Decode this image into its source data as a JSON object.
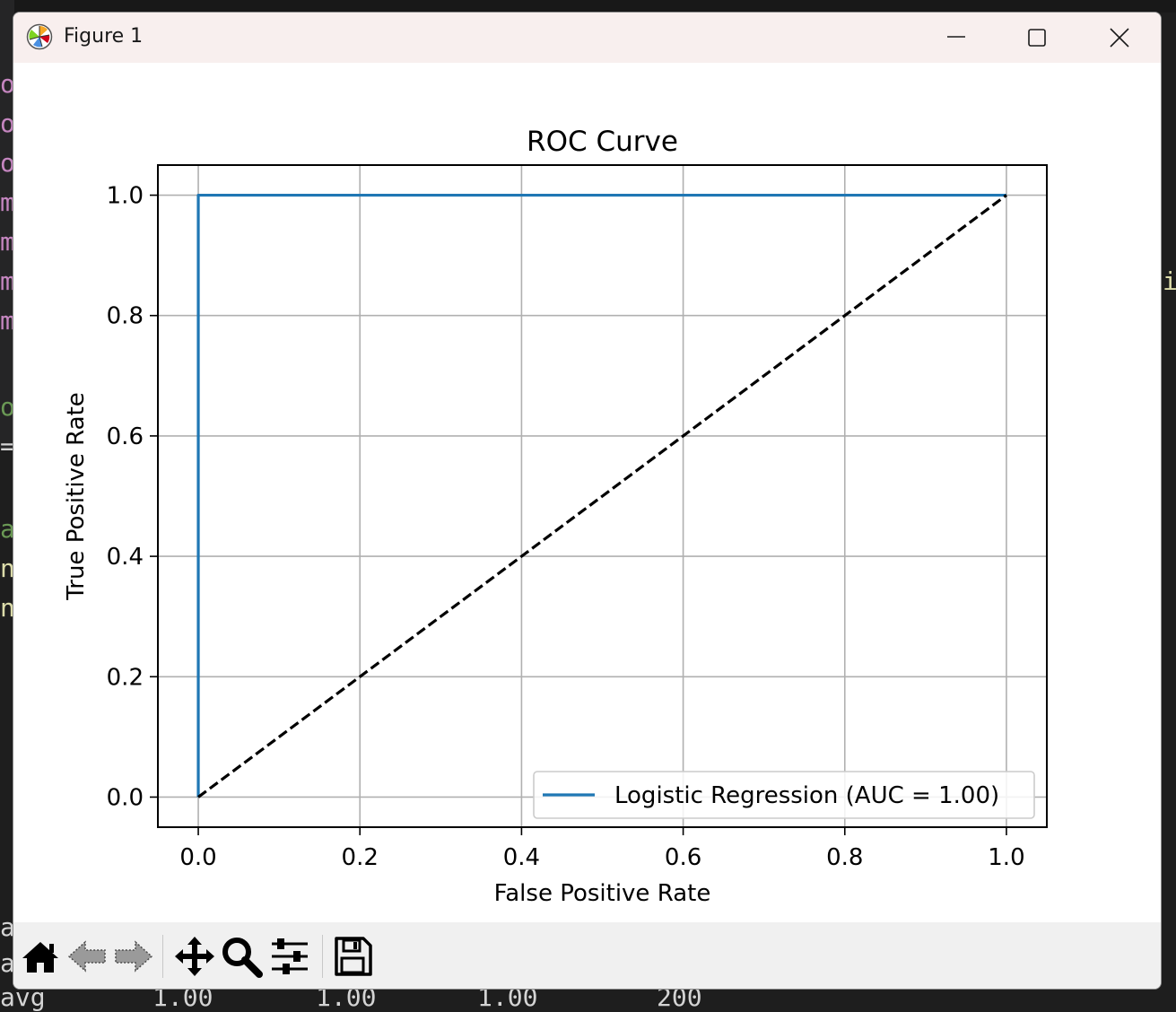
{
  "window": {
    "title": "Figure 1",
    "controls": {
      "minimize": "minimize",
      "maximize": "maximize",
      "close": "close"
    }
  },
  "chart_data": {
    "type": "line",
    "title": "ROC Curve",
    "xlabel": "False Positive Rate",
    "ylabel": "True Positive Rate",
    "xlim": [
      -0.05,
      1.05
    ],
    "ylim": [
      -0.05,
      1.05
    ],
    "xticks": [
      "0.0",
      "0.2",
      "0.4",
      "0.6",
      "0.8",
      "1.0"
    ],
    "yticks": [
      "0.0",
      "0.2",
      "0.4",
      "0.6",
      "0.8",
      "1.0"
    ],
    "grid": true,
    "legend_position": "lower-right",
    "series": [
      {
        "name": "Logistic Regression (AUC = 1.00)",
        "color": "#1f77b4",
        "style": "solid",
        "x": [
          0.0,
          0.0,
          1.0
        ],
        "y": [
          0.0,
          1.0,
          1.0
        ]
      },
      {
        "color": "#000000",
        "style": "dashed",
        "x": [
          0.0,
          1.0
        ],
        "y": [
          0.0,
          1.0
        ]
      }
    ]
  },
  "toolbar": {
    "items": [
      "home-icon",
      "back-icon",
      "forward-icon",
      "pan-icon",
      "zoom-icon",
      "configure-subplots-icon",
      "save-icon"
    ]
  },
  "background": {
    "left_chars": [
      "o",
      "o",
      "o",
      "m",
      "m",
      "m",
      "m",
      "o",
      "=",
      "a",
      "n",
      "n",
      "a",
      "a"
    ],
    "bottom_row": [
      "avg",
      "1.00",
      "1.00",
      "1.00",
      "200"
    ],
    "right_char": "i"
  }
}
